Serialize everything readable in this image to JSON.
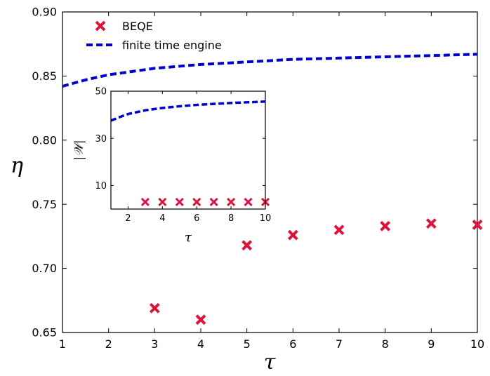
{
  "chart_data": [
    {
      "type": "scatter",
      "title": "",
      "xlabel": "τ",
      "ylabel": "η",
      "xlim": [
        1,
        10
      ],
      "ylim": [
        0.65,
        0.9
      ],
      "xticks": [
        "1",
        "2",
        "3",
        "4",
        "5",
        "6",
        "7",
        "8",
        "9",
        "10"
      ],
      "yticks": [
        "0.65",
        "0.70",
        "0.75",
        "0.80",
        "0.85",
        "0.90"
      ],
      "legend_position": "top-left",
      "grid": false,
      "series": [
        {
          "name": "BEQE",
          "kind": "scatter",
          "marker": "x",
          "color": "#dc143c",
          "x": [
            3,
            4,
            5,
            6,
            7,
            8,
            9,
            10
          ],
          "y": [
            0.669,
            0.66,
            0.718,
            0.726,
            0.73,
            0.733,
            0.735,
            0.734
          ]
        },
        {
          "name": "finite time engine",
          "kind": "line",
          "style": "dashed",
          "color": "#0000cc",
          "x": [
            1,
            1.5,
            2,
            3,
            4,
            5,
            6,
            7,
            8,
            9,
            10
          ],
          "y": [
            0.842,
            0.847,
            0.851,
            0.856,
            0.859,
            0.861,
            0.863,
            0.864,
            0.865,
            0.866,
            0.867
          ]
        }
      ]
    },
    {
      "type": "scatter",
      "title": "",
      "xlabel": "τ",
      "ylabel": "|𝒲|",
      "xlim": [
        1,
        10
      ],
      "ylim": [
        0,
        50
      ],
      "xticks": [
        "2",
        "4",
        "6",
        "8",
        "10"
      ],
      "yticks": [
        "10",
        "30",
        "50"
      ],
      "grid": false,
      "series": [
        {
          "kind": "scatter",
          "marker": "x",
          "color": "#dc143c",
          "x": [
            3,
            4,
            5,
            6,
            7,
            8,
            9,
            10
          ],
          "y": [
            3,
            3,
            3,
            3,
            3,
            3,
            3,
            3
          ]
        },
        {
          "kind": "line",
          "style": "dashed",
          "color": "#0000cc",
          "x": [
            1,
            1.5,
            2,
            3,
            4,
            5,
            6,
            7,
            8,
            9,
            10
          ],
          "y": [
            37.5,
            39,
            40.3,
            41.9,
            42.9,
            43.6,
            44.2,
            44.6,
            45,
            45.3,
            45.6
          ]
        }
      ]
    }
  ]
}
